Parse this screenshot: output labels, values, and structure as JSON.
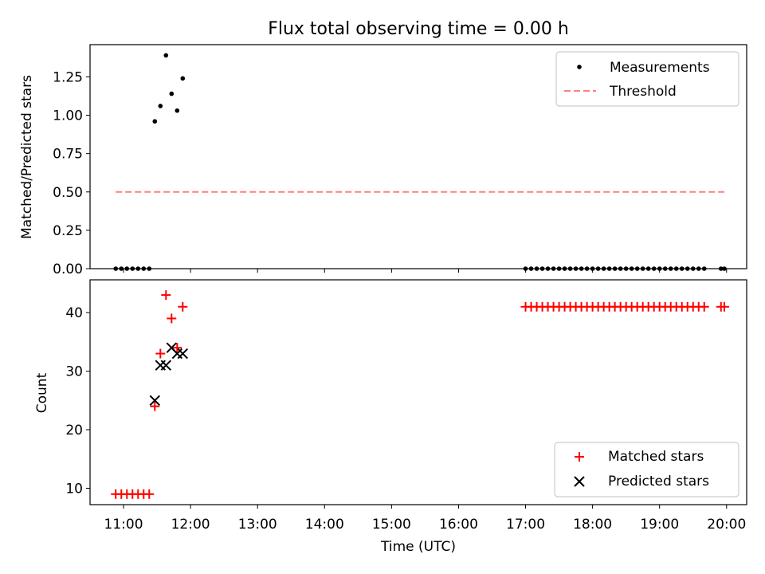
{
  "chart_data": [
    {
      "type": "scatter",
      "title": "Flux total observing time = 0.00 h",
      "xlabel": "",
      "ylabel": "Matched/Predicted stars",
      "ylim": [
        0.0,
        1.46
      ],
      "yticks": [
        "0.00",
        "0.25",
        "0.50",
        "0.75",
        "1.00",
        "1.25"
      ],
      "legend": {
        "placement": "top-right",
        "entries": [
          "Measurements",
          "Threshold"
        ]
      },
      "colors": {
        "measurements": "#000000",
        "threshold": "#ff7f7f"
      },
      "series": [
        {
          "name": "Measurements",
          "x": [
            "10:53",
            "10:58",
            "11:03",
            "11:08",
            "11:13",
            "11:18",
            "11:23",
            "11:28",
            "11:33",
            "11:38",
            "11:43",
            "11:48",
            "11:53",
            "17:00",
            "17:05",
            "17:10",
            "17:15",
            "17:20",
            "17:25",
            "17:30",
            "17:35",
            "17:40",
            "17:45",
            "17:50",
            "17:55",
            "18:00",
            "18:05",
            "18:10",
            "18:15",
            "18:20",
            "18:25",
            "18:30",
            "18:35",
            "18:40",
            "18:45",
            "18:50",
            "18:55",
            "19:00",
            "19:05",
            "19:10",
            "19:15",
            "19:20",
            "19:25",
            "19:30",
            "19:35",
            "19:40",
            "19:55",
            "19:58"
          ],
          "y": [
            0,
            0,
            0,
            0,
            0,
            0,
            0,
            0.96,
            1.06,
            1.39,
            1.14,
            1.03,
            1.24,
            0,
            0,
            0,
            0,
            0,
            0,
            0,
            0,
            0,
            0,
            0,
            0,
            0,
            0,
            0,
            0,
            0,
            0,
            0,
            0,
            0,
            0,
            0,
            0,
            0,
            0,
            0,
            0,
            0,
            0,
            0,
            0,
            0,
            0,
            0
          ]
        },
        {
          "name": "Threshold",
          "x": [
            "10:53",
            "19:58"
          ],
          "y": [
            0.5,
            0.5
          ]
        }
      ]
    },
    {
      "type": "scatter",
      "title": "",
      "xlabel": "Time (UTC)",
      "ylabel": "Count",
      "ylim": [
        7.2,
        45.6
      ],
      "yticks": [
        "10",
        "20",
        "30",
        "40"
      ],
      "xticks": [
        "11:00",
        "12:00",
        "13:00",
        "14:00",
        "15:00",
        "16:00",
        "17:00",
        "18:00",
        "19:00",
        "20:00"
      ],
      "legend": {
        "placement": "bottom-right",
        "entries": [
          "Matched stars",
          "Predicted stars"
        ]
      },
      "colors": {
        "matched": "#ff0000",
        "predicted": "#000000"
      },
      "series": [
        {
          "name": "Matched stars",
          "x": [
            "10:53",
            "10:58",
            "11:03",
            "11:08",
            "11:13",
            "11:18",
            "11:23",
            "11:28",
            "11:33",
            "11:38",
            "11:43",
            "11:48",
            "11:53",
            "17:00",
            "17:05",
            "17:10",
            "17:15",
            "17:20",
            "17:25",
            "17:30",
            "17:35",
            "17:40",
            "17:45",
            "17:50",
            "17:55",
            "18:00",
            "18:05",
            "18:10",
            "18:15",
            "18:20",
            "18:25",
            "18:30",
            "18:35",
            "18:40",
            "18:45",
            "18:50",
            "18:55",
            "19:00",
            "19:05",
            "19:10",
            "19:15",
            "19:20",
            "19:25",
            "19:30",
            "19:35",
            "19:40",
            "19:55",
            "19:58"
          ],
          "y": [
            9,
            9,
            9,
            9,
            9,
            9,
            9,
            24,
            33,
            43,
            39,
            34,
            41,
            41,
            41,
            41,
            41,
            41,
            41,
            41,
            41,
            41,
            41,
            41,
            41,
            41,
            41,
            41,
            41,
            41,
            41,
            41,
            41,
            41,
            41,
            41,
            41,
            41,
            41,
            41,
            41,
            41,
            41,
            41,
            41,
            41,
            41,
            41
          ]
        },
        {
          "name": "Predicted stars",
          "x": [
            "11:28",
            "11:33",
            "11:38",
            "11:43",
            "11:48",
            "11:53"
          ],
          "y": [
            25,
            31,
            31,
            34,
            33,
            33
          ]
        }
      ]
    }
  ]
}
